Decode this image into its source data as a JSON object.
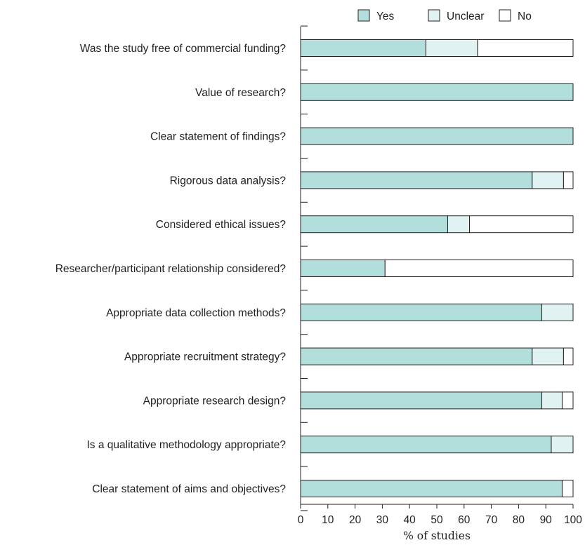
{
  "chart_data": {
    "type": "bar",
    "orientation": "horizontal",
    "stacked": true,
    "categories": [
      "Was the study free of commercial funding?",
      "Value of research?",
      "Clear statement of findings?",
      "Rigorous data analysis?",
      "Considered ethical issues?",
      "Researcher/participant relationship considered?",
      "Appropriate data collection methods?",
      "Appropriate recruitment strategy?",
      "Appropriate research design?",
      "Is a qualitative methodology appropriate?",
      "Clear statement of aims and objectives?"
    ],
    "series": [
      {
        "name": "Yes",
        "color": "#b2dfdb",
        "values": [
          46,
          100,
          100,
          85,
          54,
          31,
          88.5,
          85,
          88.5,
          92,
          96
        ]
      },
      {
        "name": "Unclear",
        "color": "#e0f2f1",
        "values": [
          19,
          0,
          0,
          11.5,
          8,
          0,
          11.5,
          11.5,
          7.5,
          8,
          0
        ]
      },
      {
        "name": "No",
        "color": "#ffffff",
        "values": [
          35,
          0,
          0,
          3.5,
          38,
          69,
          0,
          3.5,
          4,
          0,
          4
        ]
      }
    ],
    "xlabel": "% of studies",
    "xlim": [
      0,
      100
    ],
    "xticks": [
      "0",
      "10",
      "20",
      "30",
      "40",
      "50",
      "60",
      "70",
      "80",
      "90",
      "100"
    ],
    "legend": "top",
    "grid": false
  }
}
